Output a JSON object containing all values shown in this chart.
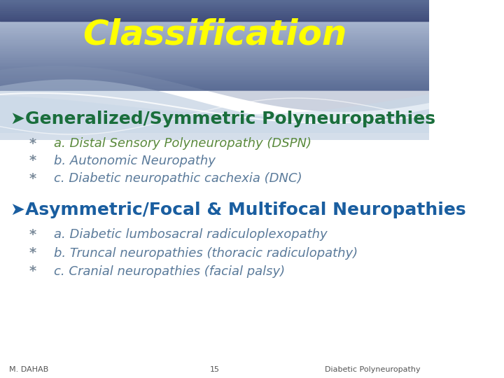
{
  "title": "Classification",
  "title_color": "#FFFF00",
  "title_fontsize": 36,
  "bg_top_color": "#5a6e99",
  "bg_bottom_color": "#ffffff",
  "header1": "➤Generalized/Symmetric Polyneuropathies",
  "header1_color": "#1a6e3c",
  "header1_fontsize": 18,
  "items1": [
    "a. Distal Sensory Polyneuropathy (DSPN)",
    "b. Autonomic Neuropathy",
    "c. Diabetic neuropathic cachexia (DNC)"
  ],
  "items1_colors": [
    "#5a8a3c",
    "#5a7a9a",
    "#5a7a9a"
  ],
  "header2": "➤Asymmetric/Focal & Multifocal Neuropathies",
  "header2_color": "#1a5ea0",
  "header2_fontsize": 18,
  "items2": [
    "a. Diabetic lumbosacral radiculoplexopathy",
    "b. Truncal neuropathies (thoracic radiculopathy)",
    "c. Cranial neuropathies (facial palsy)"
  ],
  "items2_color": "#5a7a9a",
  "footer_left": "M. DAHAB",
  "footer_center": "15",
  "footer_right": "Diabetic Polyneuropathy",
  "footer_color": "#555555",
  "footer_fontsize": 8,
  "bullet": "*"
}
